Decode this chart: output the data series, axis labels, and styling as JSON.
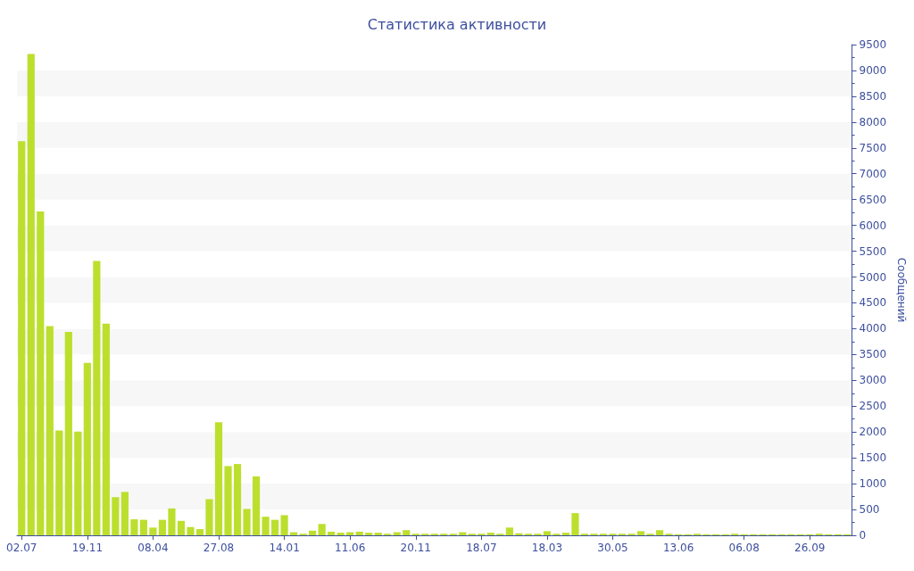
{
  "chart_data": {
    "type": "bar",
    "title": "Статистика активности",
    "y2label": "Сообщений",
    "categories": [
      "02.07",
      null,
      null,
      null,
      null,
      null,
      null,
      "19.11",
      null,
      null,
      null,
      null,
      null,
      null,
      "08.04",
      null,
      null,
      null,
      null,
      null,
      null,
      "27.08",
      null,
      null,
      null,
      null,
      null,
      null,
      "14.01",
      null,
      null,
      null,
      null,
      null,
      null,
      "11.06",
      null,
      null,
      null,
      null,
      null,
      null,
      "20.11",
      null,
      null,
      null,
      null,
      null,
      null,
      "18.07",
      null,
      null,
      null,
      null,
      null,
      null,
      "18.03",
      null,
      null,
      null,
      null,
      null,
      null,
      "30.05",
      null,
      null,
      null,
      null,
      null,
      null,
      "13.06",
      null,
      null,
      null,
      null,
      null,
      null,
      "06.08",
      null,
      null,
      null,
      null,
      null,
      null,
      "26.09",
      null,
      null,
      null,
      null
    ],
    "series": [
      {
        "color": "#bcdf2e",
        "axis": "y2",
        "values": [
          7630,
          9320,
          6270,
          4050,
          2030,
          3940,
          2010,
          3340,
          5310,
          4100,
          740,
          840,
          310,
          300,
          150,
          300,
          520,
          280,
          160,
          120,
          700,
          2190,
          1340,
          1380,
          510,
          1140,
          360,
          300,
          390,
          60,
          30,
          90,
          220,
          70,
          50,
          60,
          70,
          50,
          50,
          30,
          60,
          100,
          30,
          30,
          30,
          30,
          30,
          60,
          30,
          30,
          50,
          30,
          150,
          40,
          30,
          30,
          80,
          30,
          50,
          430,
          30,
          30,
          30,
          30,
          30,
          30,
          80,
          30,
          100,
          30,
          20,
          20,
          30,
          20,
          20,
          20,
          30,
          20,
          20,
          20,
          20,
          20,
          20,
          20,
          20,
          30,
          20,
          20,
          20
        ]
      }
    ],
    "y2lim": [
      0,
      9500
    ],
    "y2ticks": [
      0,
      500,
      1000,
      1500,
      2000,
      2500,
      3000,
      3500,
      4000,
      4500,
      5000,
      5500,
      6000,
      6500,
      7000,
      7500,
      8000,
      8500,
      9000,
      9500
    ]
  }
}
